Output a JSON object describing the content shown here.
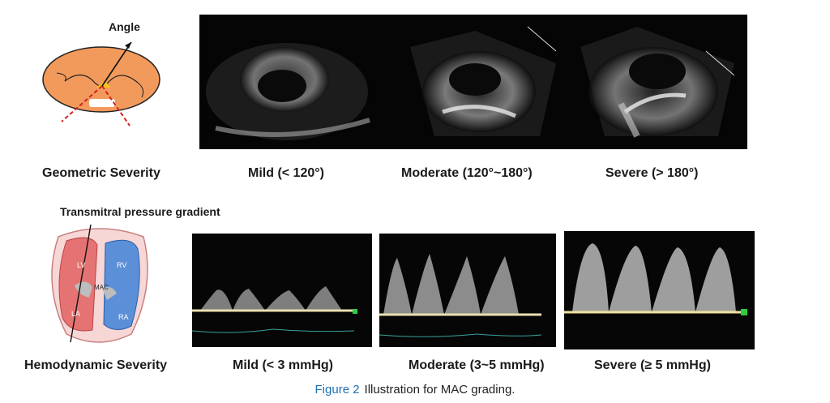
{
  "geometric": {
    "heading": "Angle",
    "row_label": "Geometric Severity",
    "grades": [
      "Mild (< 120°)",
      "Moderate (120°~180°)",
      "Severe (> 180°)"
    ]
  },
  "hemodynamic": {
    "heading": "Transmitral pressure gradient",
    "row_label": "Hemodynamic Severity",
    "chambers": {
      "lv": "LV",
      "rv": "RV",
      "la": "LA",
      "ra": "RA",
      "mac": "MAC"
    },
    "grades": [
      "Mild (< 3 mmHg)",
      "Moderate (3~5 mmHg)",
      "Severe (≥ 5 mmHg)"
    ]
  },
  "caption": {
    "figure_number": "Figure 2",
    "text": "Illustration for MAC grading."
  },
  "colors": {
    "heart_orange": "#f29a5c",
    "lv_red": "#e57373",
    "rv_blue": "#5b8fd8",
    "caption_blue": "#1f6fb3"
  }
}
